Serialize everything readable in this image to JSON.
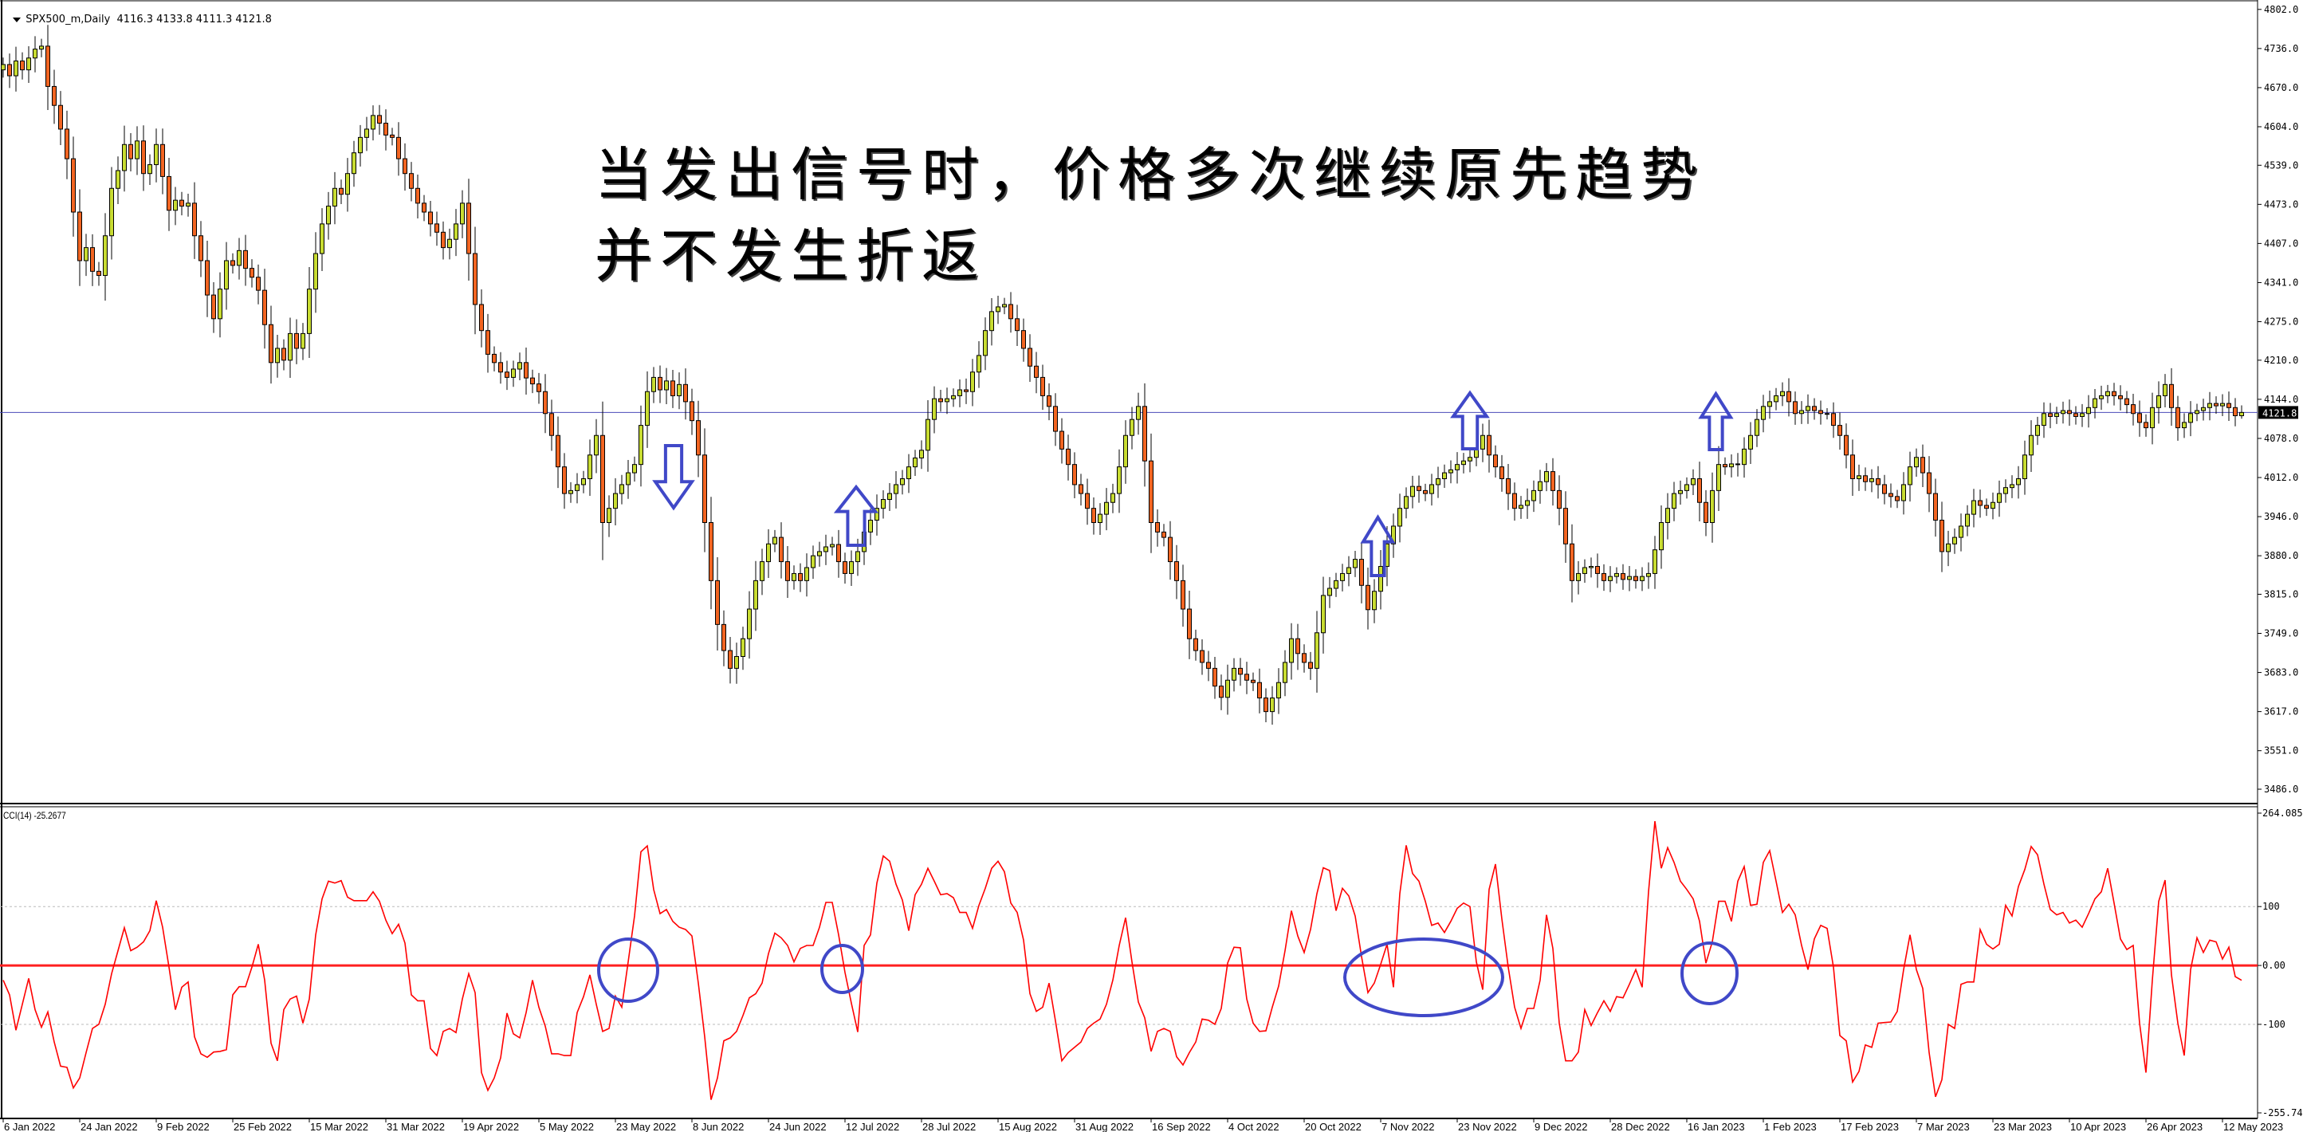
{
  "chart_header": {
    "symbol": "SPX500_m,Daily",
    "ohlc": "4116.3 4133.8 4111.3 4121.8"
  },
  "annotation": {
    "line1": "当发出信号时，价格多次继续原先趋势",
    "line2": "并不发生折返"
  },
  "markers": {
    "arrows": [
      {
        "direction": "down"
      },
      {
        "direction": "up"
      },
      {
        "direction": "up"
      },
      {
        "direction": "up"
      },
      {
        "direction": "up"
      }
    ],
    "circles": 4,
    "color": "#4048c8"
  },
  "chart_data": [
    {
      "type": "candlestick",
      "symbol": "SPX500_m,Daily",
      "colors": {
        "bull": "#c8dc32",
        "bear": "#f26522",
        "outline": "#000000",
        "price_line": "#4a4ab8"
      },
      "current_price": 4121.8,
      "current_price_label": "4121.8",
      "last_bar": {
        "open": 4116.3,
        "high": 4133.8,
        "low": 4111.3,
        "close": 4121.8
      },
      "ylim": [
        3486.0,
        4802.0
      ],
      "y_ticks": [
        "4802.0",
        "4736.0",
        "4670.0",
        "4604.0",
        "4539.0",
        "4473.0",
        "4407.0",
        "4341.0",
        "4275.0",
        "4210.0",
        "4144.0",
        "4078.0",
        "4012.0",
        "3946.0",
        "3880.0",
        "3815.0",
        "3749.0",
        "3683.0",
        "3617.0",
        "3551.0",
        "3486.0"
      ],
      "x_labels": [
        "6 Jan 2022",
        "24 Jan 2022",
        "9 Feb 2022",
        "25 Feb 2022",
        "15 Mar 2022",
        "31 Mar 2022",
        "19 Apr 2022",
        "5 May 2022",
        "23 May 2022",
        "8 Jun 2022",
        "24 Jun 2022",
        "12 Jul 2022",
        "28 Jul 2022",
        "15 Aug 2022",
        "31 Aug 2022",
        "16 Sep 2022",
        "4 Oct 2022",
        "20 Oct 2022",
        "7 Nov 2022",
        "23 Nov 2022",
        "9 Dec 2022",
        "28 Dec 2022",
        "16 Jan 2023",
        "1 Feb 2023",
        "17 Feb 2023",
        "7 Mar 2023",
        "23 Mar 2023",
        "10 Apr 2023",
        "26 Apr 2023",
        "12 May 2023"
      ],
      "closes": [
        4709,
        4690,
        4715,
        4700,
        4720,
        4735,
        4740,
        4672,
        4640,
        4600,
        4550,
        4460,
        4378,
        4400,
        4360,
        4353,
        4420,
        4500,
        4530,
        4574,
        4550,
        4580,
        4525,
        4540,
        4574,
        4520,
        4463,
        4480,
        4470,
        4475,
        4420,
        4378,
        4320,
        4280,
        4330,
        4378,
        4370,
        4395,
        4365,
        4350,
        4328,
        4270,
        4206,
        4230,
        4210,
        4255,
        4230,
        4255,
        4330,
        4390,
        4440,
        4470,
        4500,
        4490,
        4525,
        4560,
        4586,
        4600,
        4623,
        4610,
        4590,
        4586,
        4550,
        4525,
        4500,
        4475,
        4460,
        4440,
        4426,
        4400,
        4414,
        4440,
        4475,
        4390,
        4304,
        4260,
        4220,
        4206,
        4190,
        4181,
        4195,
        4206,
        4180,
        4170,
        4157,
        4120,
        4083,
        4030,
        3985,
        3990,
        4000,
        4010,
        4050,
        4083,
        3936,
        3960,
        3985,
        4000,
        4020,
        4034,
        4100,
        4157,
        4181,
        4160,
        4175,
        4150,
        4169,
        4140,
        4108,
        4050,
        3936,
        3838,
        3764,
        3720,
        3690,
        3710,
        3740,
        3790,
        3838,
        3870,
        3900,
        3911,
        3870,
        3838,
        3850,
        3838,
        3860,
        3880,
        3887,
        3895,
        3899,
        3870,
        3850,
        3870,
        3887,
        3920,
        3940,
        3960,
        3975,
        3985,
        4000,
        4010,
        4030,
        4045,
        4058,
        4110,
        4145,
        4140,
        4145,
        4150,
        4160,
        4157,
        4190,
        4218,
        4260,
        4292,
        4300,
        4304,
        4280,
        4260,
        4230,
        4200,
        4181,
        4150,
        4132,
        4090,
        4060,
        4034,
        4000,
        3985,
        3960,
        3936,
        3950,
        3970,
        3985,
        4030,
        4083,
        4110,
        4132,
        4040,
        3936,
        3920,
        3911,
        3870,
        3838,
        3790,
        3740,
        3720,
        3700,
        3690,
        3660,
        3641,
        3670,
        3690,
        3680,
        3670,
        3666,
        3640,
        3617,
        3640,
        3666,
        3700,
        3740,
        3715,
        3700,
        3690,
        3750,
        3813,
        3825,
        3838,
        3850,
        3860,
        3874,
        3830,
        3789,
        3820,
        3862,
        3900,
        3930,
        3960,
        3980,
        3997,
        3990,
        3985,
        4000,
        4010,
        4020,
        4025,
        4034,
        4040,
        4046,
        4060,
        4083,
        4050,
        4030,
        4010,
        3985,
        3960,
        3965,
        3973,
        3990,
        4005,
        4022,
        3990,
        3960,
        3900,
        3838,
        3850,
        3860,
        3862,
        3850,
        3838,
        3845,
        3850,
        3840,
        3845,
        3838,
        3845,
        3850,
        3890,
        3936,
        3960,
        3985,
        3990,
        4000,
        4010,
        3970,
        3936,
        3990,
        4034,
        4030,
        4035,
        4034,
        4060,
        4083,
        4110,
        4132,
        4140,
        4150,
        4157,
        4140,
        4120,
        4125,
        4132,
        4125,
        4120,
        4120,
        4100,
        4083,
        4050,
        4010,
        4015,
        4005,
        4010,
        4000,
        3985,
        3980,
        3973,
        4000,
        4030,
        4046,
        4020,
        3985,
        3940,
        3887,
        3900,
        3911,
        3930,
        3950,
        3973,
        3965,
        3960,
        3970,
        3985,
        3995,
        4000,
        4010,
        4050,
        4083,
        4100,
        4120,
        4115,
        4120,
        4125,
        4120,
        4115,
        4120,
        4130,
        4145,
        4150,
        4157,
        4150,
        4145,
        4135,
        4120,
        4105,
        4096,
        4130,
        4150,
        4169,
        4130,
        4096,
        4105,
        4120,
        4125,
        4130,
        4137,
        4133,
        4137,
        4130,
        4116.3,
        4121.8
      ]
    },
    {
      "type": "line",
      "indicator": "CCI(14) -25.2677",
      "color": "#ff0000",
      "zero_line_color": "#ff2020",
      "ylim": [
        -255.7472,
        264.0853
      ],
      "y_ticks": [
        "264.0853",
        "100",
        "0.00",
        "-100",
        "-255.7472"
      ],
      "levels": [
        100,
        0,
        -100
      ],
      "values": [
        -25,
        -50,
        -110,
        -66,
        -22,
        -75,
        -105,
        -79,
        -130,
        -171,
        -173,
        -208,
        -191,
        -148,
        -107,
        -100,
        -66,
        -14,
        25,
        64,
        25,
        31,
        40,
        59,
        110,
        65,
        -3,
        -75,
        -37,
        -28,
        -121,
        -150,
        -156,
        -147,
        -146,
        -143,
        -50,
        -36,
        -36,
        -3,
        36,
        -25,
        -132,
        -162,
        -75,
        -57,
        -52,
        -98,
        -57,
        52,
        113,
        143,
        140,
        144,
        116,
        110,
        110,
        110,
        125,
        109,
        77,
        54,
        70,
        38,
        -50,
        -60,
        -60,
        -141,
        -153,
        -112,
        -107,
        -114,
        -57,
        -14,
        -46,
        -182,
        -212,
        -191,
        -157,
        -81,
        -116,
        -123,
        -80,
        -25,
        -71,
        -103,
        -150,
        -150,
        -153,
        -153,
        -80,
        -53,
        -16,
        -66,
        -112,
        -107,
        -52,
        -71,
        6,
        84,
        193,
        203,
        129,
        88,
        95,
        75,
        65,
        61,
        50,
        -30,
        -121,
        -228,
        -191,
        -128,
        -123,
        -112,
        -85,
        -55,
        -48,
        -30,
        20,
        55,
        47,
        34,
        6,
        29,
        34,
        34,
        65,
        107,
        107,
        52,
        -12,
        -64,
        -113,
        34,
        52,
        140,
        186,
        177,
        138,
        111,
        59,
        120,
        138,
        165,
        143,
        120,
        122,
        115,
        90,
        90,
        63,
        102,
        131,
        165,
        177,
        159,
        106,
        90,
        43,
        -48,
        -78,
        -71,
        -30,
        -94,
        -162,
        -148,
        -139,
        -130,
        -107,
        -98,
        -91,
        -66,
        -25,
        34,
        81,
        6,
        -62,
        -89,
        -146,
        -112,
        -107,
        -112,
        -155,
        -169,
        -148,
        -130,
        -91,
        -93,
        -100,
        -73,
        4,
        31,
        30,
        -57,
        -98,
        -112,
        -111,
        -71,
        -35,
        25,
        93,
        50,
        22,
        61,
        122,
        166,
        161,
        93,
        131,
        118,
        84,
        15,
        -46,
        -30,
        2,
        36,
        -37,
        122,
        204,
        156,
        143,
        109,
        68,
        72,
        56,
        75,
        97,
        106,
        100,
        6,
        -41,
        129,
        172,
        79,
        -3,
        -71,
        -107,
        -73,
        -73,
        -25,
        86,
        29,
        -98,
        -162,
        -162,
        -147,
        -75,
        -102,
        -80,
        -60,
        -78,
        -53,
        -55,
        -32,
        -7,
        -37,
        125,
        245,
        165,
        200,
        175,
        143,
        129,
        113,
        75,
        4,
        40,
        109,
        109,
        75,
        143,
        168,
        102,
        104,
        175,
        195,
        143,
        90,
        104,
        86,
        34,
        -7,
        45,
        68,
        63,
        -3,
        -119,
        -128,
        -198,
        -180,
        -135,
        -139,
        -98,
        -97,
        -96,
        -78,
        -7,
        52,
        -7,
        -39,
        -148,
        -223,
        -194,
        -100,
        -107,
        -32,
        -28,
        -28,
        61,
        36,
        28,
        36,
        102,
        84,
        134,
        163,
        202,
        188,
        138,
        95,
        86,
        90,
        72,
        77,
        65,
        88,
        113,
        125,
        165,
        106,
        45,
        27,
        34,
        -98,
        -182,
        -25,
        109,
        145,
        -16,
        -98,
        -153,
        -7,
        47,
        22,
        43,
        40,
        11,
        31,
        -19,
        -25.2677
      ]
    }
  ]
}
